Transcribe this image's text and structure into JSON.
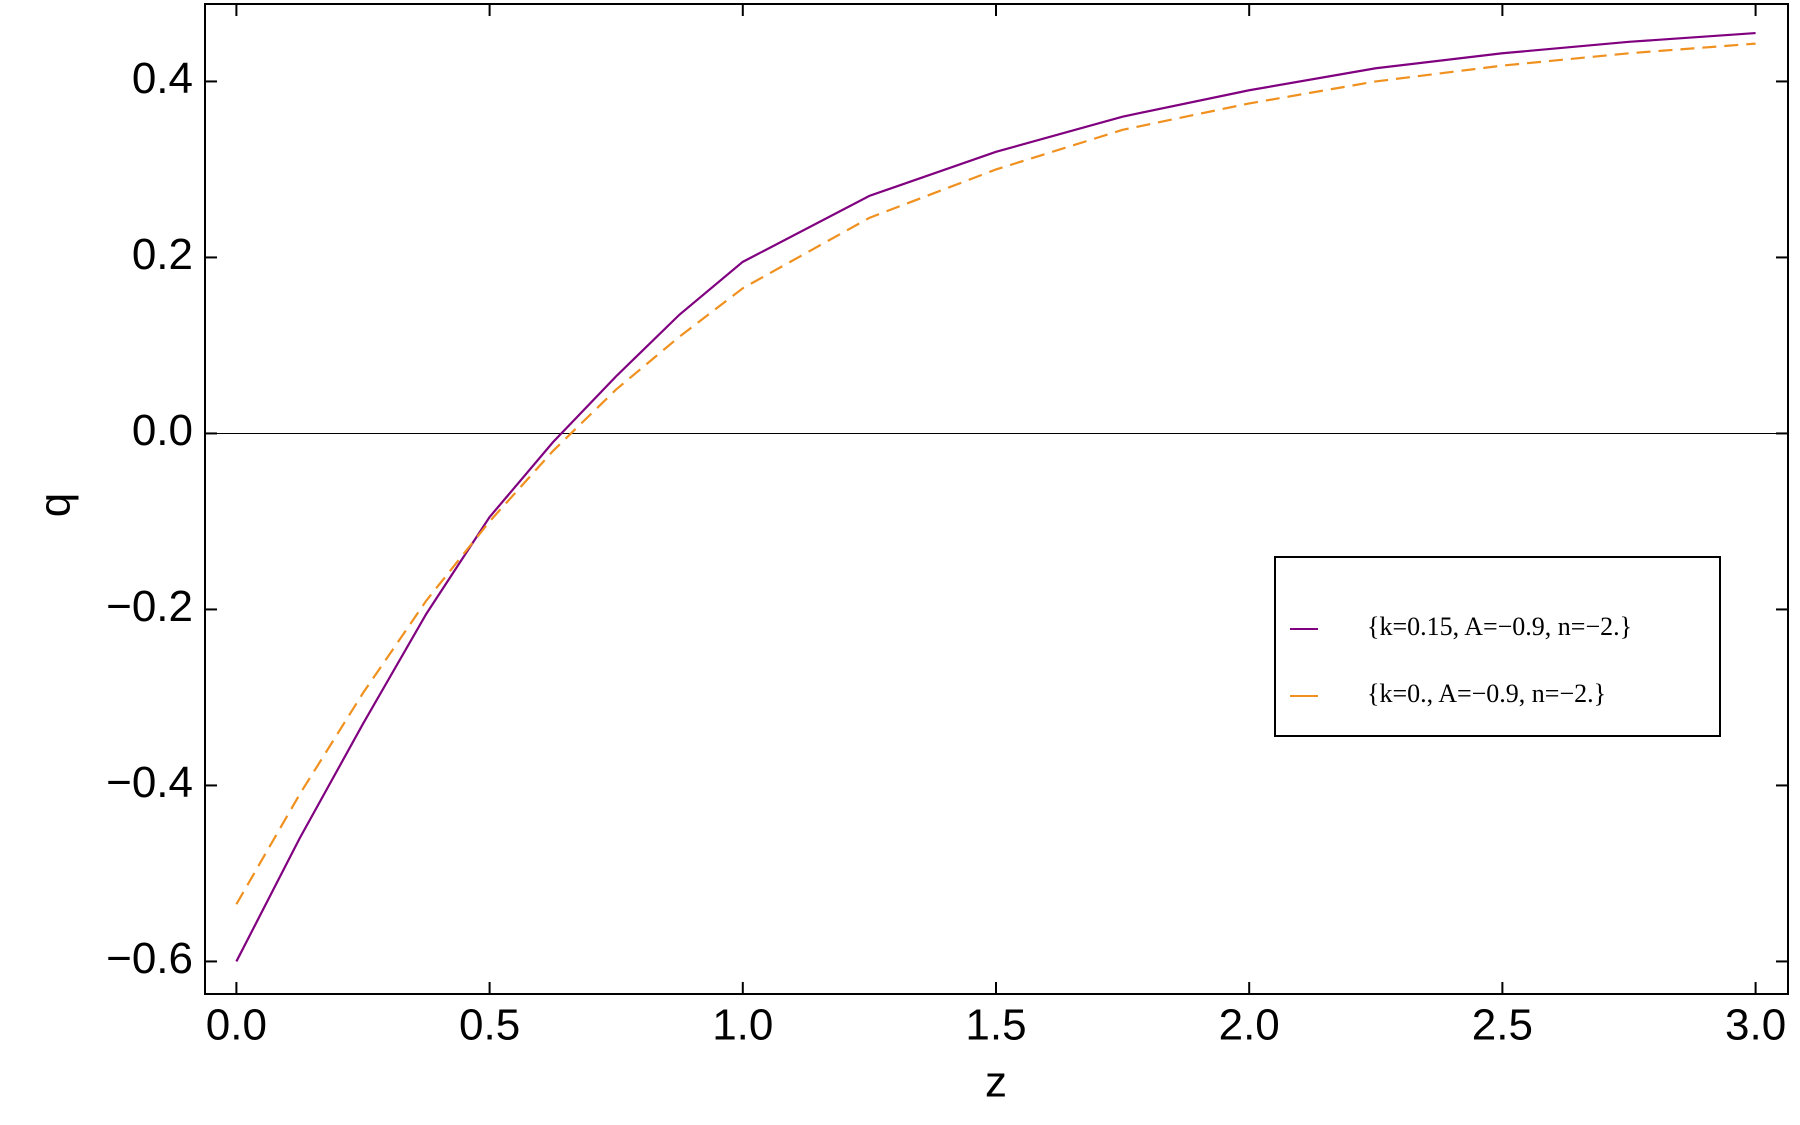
{
  "chart_data": {
    "type": "line",
    "x_label": "z",
    "y_label": "q",
    "x": [
      0,
      0.125,
      0.25,
      0.375,
      0.5,
      0.625,
      0.75,
      0.875,
      1,
      1.25,
      1.5,
      1.75,
      2,
      2.25,
      2.5,
      2.75,
      3
    ],
    "series": [
      {
        "name": "{k=0.15, A=−0.9, n=−2.}",
        "color": "#800080",
        "dash": false,
        "values": [
          -0.6,
          -0.46,
          -0.33,
          -0.205,
          -0.095,
          -0.01,
          0.065,
          0.135,
          0.195,
          0.27,
          0.32,
          0.36,
          0.39,
          0.415,
          0.432,
          0.445,
          0.455
        ]
      },
      {
        "name": "{k=0., A=−0.9, n=−2.}",
        "color": "#f0901e",
        "dash": true,
        "values": [
          -0.535,
          -0.41,
          -0.295,
          -0.19,
          -0.1,
          -0.02,
          0.05,
          0.11,
          0.165,
          0.245,
          0.3,
          0.345,
          0.375,
          0.4,
          0.418,
          0.432,
          0.443
        ]
      }
    ],
    "xlim": [
      -0.062,
      3.064
    ],
    "ylim": [
      -0.637,
      0.488
    ],
    "xticks": [
      {
        "value": 0,
        "label": "0.0"
      },
      0.5,
      {
        "value": 1,
        "label": "1.0"
      },
      1.5,
      {
        "value": 2,
        "label": "2.0"
      },
      2.5,
      {
        "value": 3,
        "label": "3.0"
      }
    ],
    "yticks": [
      {
        "value": -0.6,
        "label": "−0.6"
      },
      {
        "value": -0.4,
        "label": "−0.4"
      },
      {
        "value": -0.2,
        "label": "−0.2"
      },
      {
        "value": 0,
        "label": "0.0"
      },
      0.2,
      0.4
    ],
    "legend": "right",
    "grid": false
  }
}
